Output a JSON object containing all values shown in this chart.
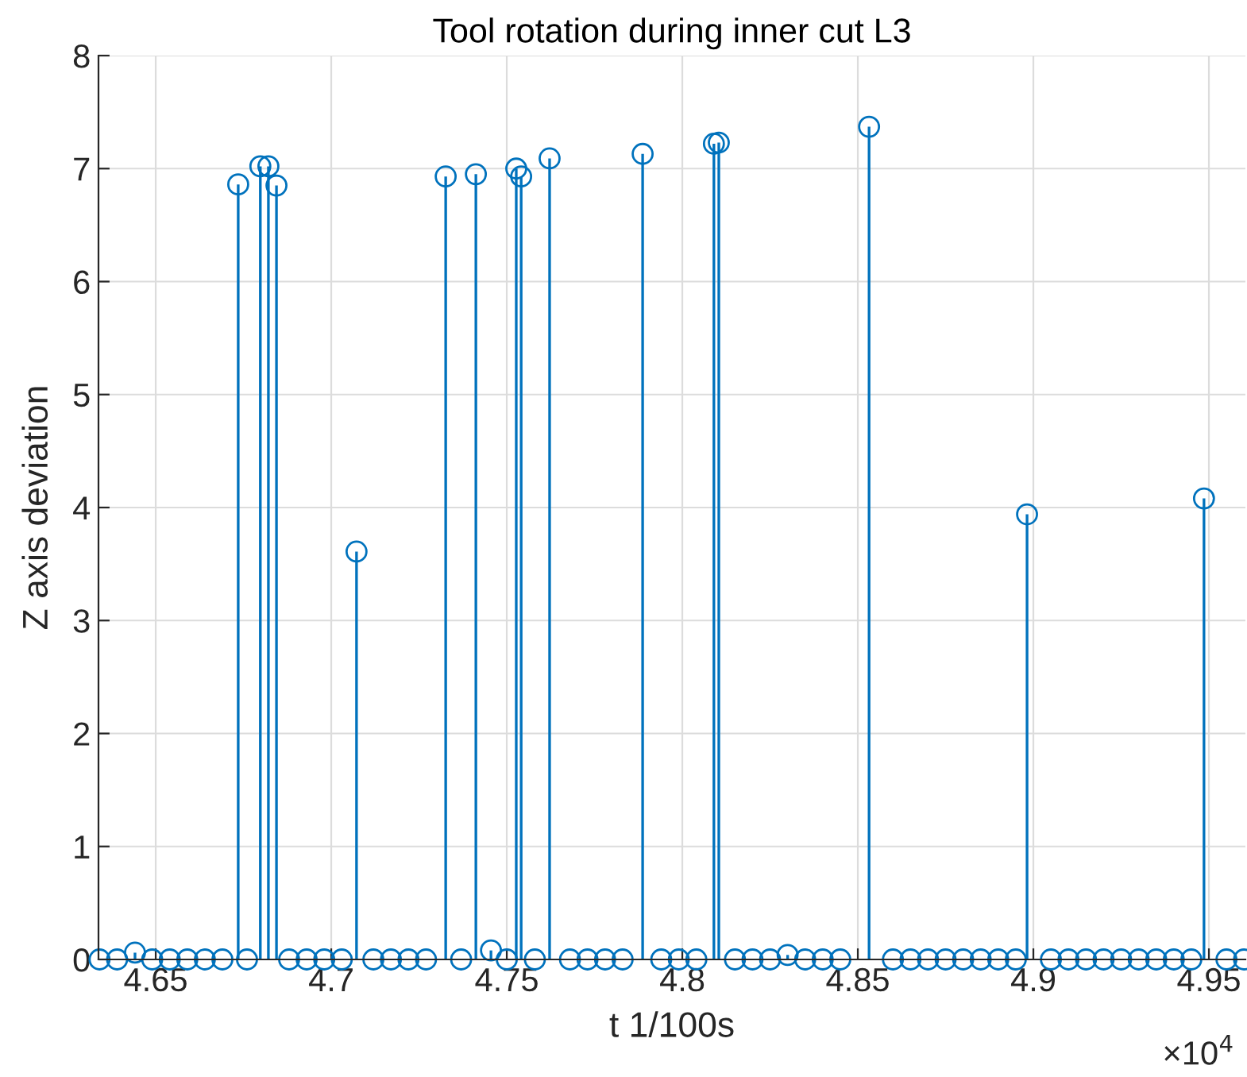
{
  "chart_data": {
    "type": "lollipop",
    "title": "Tool rotation during inner cut L3",
    "xlabel": "t 1/100s",
    "ylabel": "Z axis deviation",
    "annotations": [
      "×10$^{4}$"
    ],
    "xlim": [
      4.6337,
      4.9604
    ],
    "xticks": [
      4.65,
      4.7,
      4.75,
      4.8,
      4.85,
      4.9,
      4.95
    ],
    "ylim": [
      0,
      8
    ],
    "yticks": [
      0,
      1,
      2,
      3,
      4,
      5,
      6,
      7,
      8
    ],
    "grid": true,
    "marker": "circle",
    "series": [
      {
        "color": "#0072bd",
        "x": [
          4.6735,
          4.6798,
          4.6821,
          4.6844,
          4.7072,
          4.7326,
          4.7412,
          4.7527,
          4.7541,
          4.7622,
          4.7887,
          4.809,
          4.8104,
          4.8532,
          4.8982,
          4.9486,
          4.6441,
          4.7455,
          4.83,
          4.634,
          4.639,
          4.649,
          4.654,
          4.659,
          4.664,
          4.669,
          4.676,
          4.688,
          4.693,
          4.698,
          4.703,
          4.712,
          4.717,
          4.722,
          4.727,
          4.737,
          4.75,
          4.758,
          4.768,
          4.773,
          4.778,
          4.783,
          4.794,
          4.799,
          4.804,
          4.815,
          4.82,
          4.825,
          4.835,
          4.84,
          4.845,
          4.86,
          4.865,
          4.87,
          4.875,
          4.88,
          4.885,
          4.89,
          4.895,
          4.905,
          4.91,
          4.915,
          4.92,
          4.925,
          4.93,
          4.935,
          4.94,
          4.945,
          4.955,
          4.96
        ],
        "values": [
          6.86,
          7.02,
          7.02,
          6.85,
          3.61,
          6.93,
          6.95,
          7.0,
          6.93,
          7.09,
          7.13,
          7.22,
          7.23,
          7.37,
          3.94,
          4.08,
          0.06,
          0.08,
          0.04,
          0,
          0,
          0,
          0,
          0,
          0,
          0,
          0,
          0,
          0,
          0,
          0,
          0,
          0,
          0,
          0,
          0,
          0,
          0,
          0,
          0,
          0,
          0,
          0,
          0,
          0,
          0,
          0,
          0,
          0,
          0,
          0,
          0,
          0,
          0,
          0,
          0,
          0,
          0,
          0,
          0,
          0,
          0,
          0,
          0,
          0,
          0,
          0,
          0,
          0,
          0
        ]
      }
    ]
  }
}
